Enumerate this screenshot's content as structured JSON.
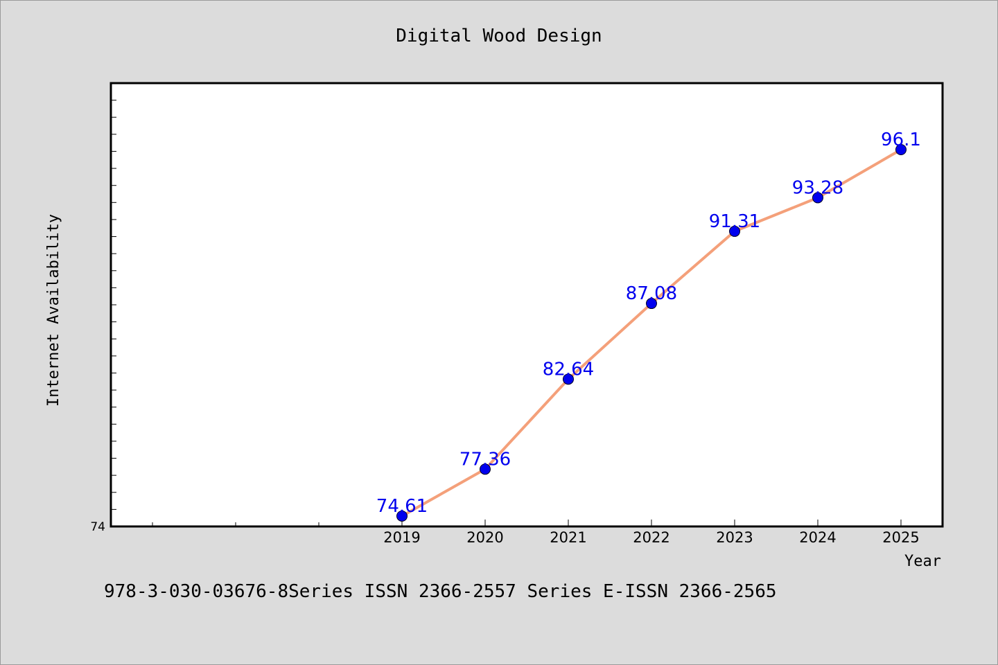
{
  "chart_data": {
    "type": "line",
    "title": "Digital Wood Design",
    "xlabel": "Year",
    "ylabel": "Internet Availability",
    "x": [
      2019,
      2020,
      2021,
      2022,
      2023,
      2024,
      2025
    ],
    "series": [
      {
        "values": [
          74.61,
          77.36,
          82.64,
          87.08,
          91.31,
          93.28,
          96.1
        ]
      }
    ],
    "value_labels": [
      "74.61",
      "77.36",
      "82.64",
      "87.08",
      "91.31",
      "93.28",
      "96.1"
    ],
    "y_tick_labels": [
      "74"
    ],
    "xlim": [
      2015.5,
      2025.5
    ],
    "ylim": [
      74,
      100
    ],
    "grid": false,
    "line_color": "#f4a07a",
    "marker_color": "#0000ee",
    "label_color": "#0000ee"
  },
  "footer": {
    "text": "978-3-030-03676-8Series ISSN 2366-2557 Series E-ISSN 2366-2565"
  }
}
